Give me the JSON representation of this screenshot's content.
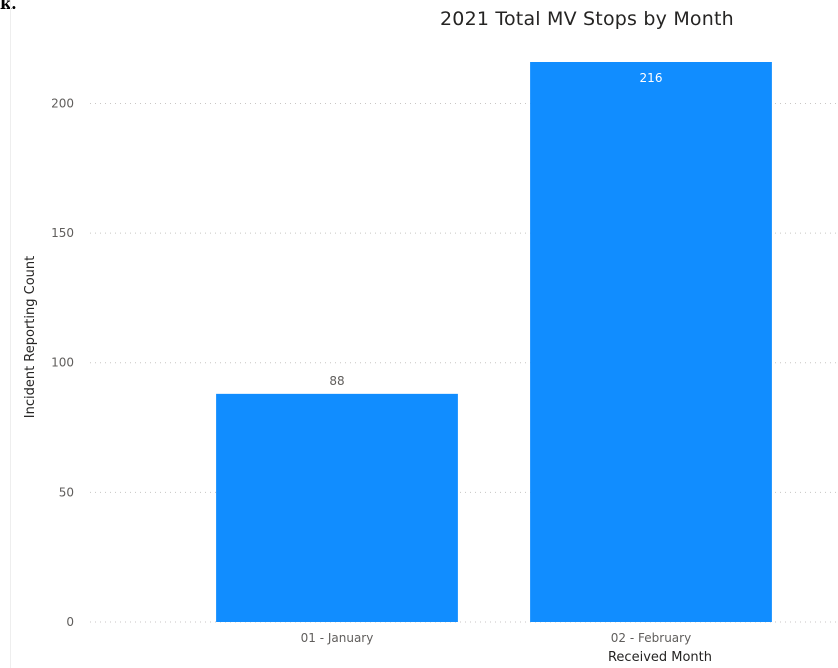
{
  "corner_text": "k.",
  "chart_data": {
    "type": "bar",
    "title": "2021 Total MV Stops by Month",
    "xlabel": "Received Month",
    "ylabel": "Incident Reporting Count",
    "categories": [
      "01 - January",
      "02 - February"
    ],
    "values": [
      88,
      216
    ],
    "ylim": [
      0,
      216
    ],
    "yticks": [
      0,
      50,
      100,
      150,
      200
    ],
    "grid": true,
    "gridStyle": "dotted",
    "barColor": "#118dff",
    "dataLabelInsideColor": "#ffffff",
    "dataLabelOutsideColor": "#605e5c",
    "gridColor": "#c8c6c4"
  }
}
